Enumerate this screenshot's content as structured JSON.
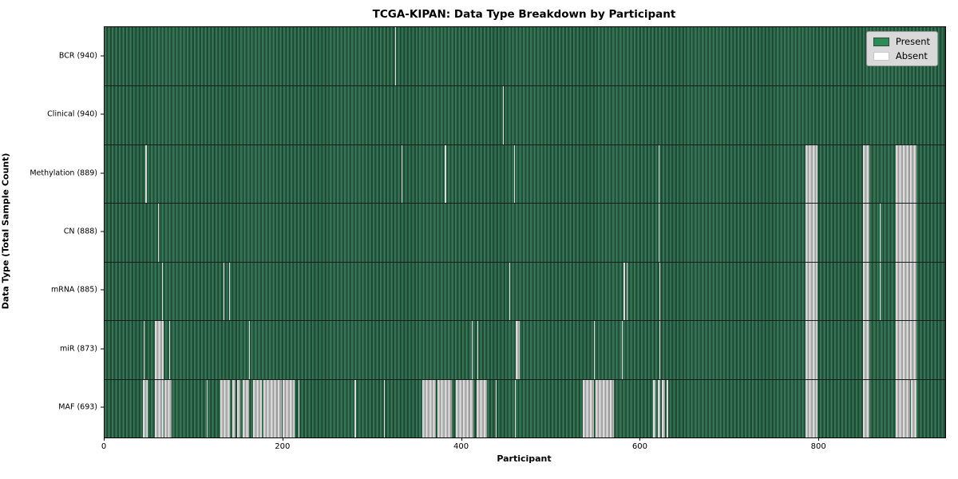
{
  "chart_data": {
    "type": "heatmap",
    "title": "TCGA-KIPAN: Data Type Breakdown by Participant",
    "xlabel": "Participant",
    "ylabel": "Data Type (Total Sample Count)",
    "xlim": [
      0,
      941
    ],
    "x_ticks": [
      0,
      200,
      400,
      600,
      800
    ],
    "grid": false,
    "legend_position": "upper right",
    "legend": [
      {
        "label": "Present",
        "color": "#2e8b57"
      },
      {
        "label": "Absent",
        "color": "#ffffff"
      }
    ],
    "rows": [
      {
        "label": "BCR (940)",
        "data_type": "BCR",
        "total_samples": 940,
        "absent_ranges": [
          [
            325,
            326
          ]
        ]
      },
      {
        "label": "Clinical (940)",
        "data_type": "Clinical",
        "total_samples": 940,
        "absent_ranges": [
          [
            446,
            447
          ]
        ]
      },
      {
        "label": "Methylation (889)",
        "data_type": "Methylation",
        "total_samples": 889,
        "absent_ranges": [
          [
            46,
            47
          ],
          [
            332,
            333
          ],
          [
            381,
            382
          ],
          [
            458,
            459
          ],
          [
            620,
            621
          ],
          [
            785,
            798
          ],
          [
            849,
            856
          ],
          [
            886,
            909
          ]
        ]
      },
      {
        "label": "CN (888)",
        "data_type": "CN",
        "total_samples": 888,
        "absent_ranges": [
          [
            60,
            61
          ],
          [
            620,
            621
          ],
          [
            785,
            798
          ],
          [
            849,
            856
          ],
          [
            868,
            869
          ],
          [
            886,
            909
          ]
        ]
      },
      {
        "label": "mRNA (885)",
        "data_type": "mRNA",
        "total_samples": 885,
        "absent_ranges": [
          [
            64,
            65
          ],
          [
            133,
            134
          ],
          [
            139,
            140
          ],
          [
            453,
            454
          ],
          [
            581,
            583
          ],
          [
            584,
            585
          ],
          [
            621,
            622
          ],
          [
            785,
            798
          ],
          [
            849,
            856
          ],
          [
            868,
            869
          ],
          [
            886,
            909
          ]
        ]
      },
      {
        "label": "miR (873)",
        "data_type": "miR",
        "total_samples": 873,
        "absent_ranges": [
          [
            44,
            45
          ],
          [
            56,
            66
          ],
          [
            72,
            73
          ],
          [
            162,
            163
          ],
          [
            411,
            412
          ],
          [
            417,
            418
          ],
          [
            460,
            465
          ],
          [
            548,
            549
          ],
          [
            579,
            580
          ],
          [
            621,
            622
          ],
          [
            785,
            798
          ],
          [
            849,
            856
          ],
          [
            886,
            909
          ]
        ]
      },
      {
        "label": "MAF (693)",
        "data_type": "MAF",
        "total_samples": 693,
        "absent_ranges": [
          [
            43,
            48
          ],
          [
            56,
            66
          ],
          [
            67,
            75
          ],
          [
            114,
            115
          ],
          [
            130,
            140
          ],
          [
            143,
            147
          ],
          [
            148,
            152
          ],
          [
            155,
            162
          ],
          [
            166,
            176
          ],
          [
            178,
            198
          ],
          [
            199,
            213
          ],
          [
            217,
            218
          ],
          [
            280,
            281
          ],
          [
            313,
            314
          ],
          [
            356,
            371
          ],
          [
            373,
            389
          ],
          [
            393,
            413
          ],
          [
            416,
            428
          ],
          [
            438,
            439
          ],
          [
            459,
            460
          ],
          [
            535,
            548
          ],
          [
            550,
            570
          ],
          [
            614,
            617
          ],
          [
            619,
            622
          ],
          [
            624,
            627
          ],
          [
            629,
            631
          ],
          [
            785,
            798
          ],
          [
            849,
            856
          ],
          [
            886,
            902
          ],
          [
            903,
            909
          ]
        ]
      }
    ]
  }
}
